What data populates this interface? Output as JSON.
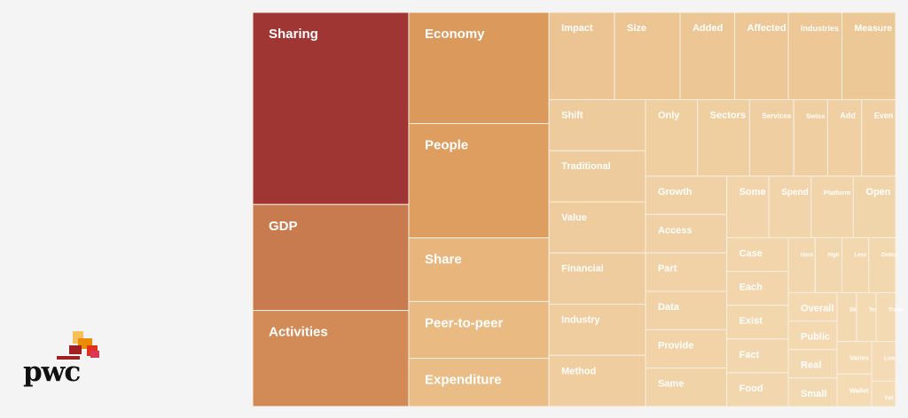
{
  "brand": {
    "logo_text": "pwc"
  },
  "colors": {
    "background": "#f4f4f4",
    "cell_border": "#f7efe4",
    "label": "#ffffff",
    "logo_blocks": [
      "#f6c15a",
      "#eb8c00",
      "#e0301e",
      "#a32020",
      "#d93954"
    ]
  },
  "chart_data": {
    "type": "treemap",
    "title": "",
    "weight_units": "relative word frequency (estimated from tile areas)",
    "items": [
      {
        "label": "Sharing",
        "weight": 3.46,
        "color": "#a03633"
      },
      {
        "label": "GDP",
        "weight": 1.91,
        "color": "#c97b50"
      },
      {
        "label": "Activities",
        "weight": 1.73,
        "color": "#d28b57"
      },
      {
        "label": "Economy",
        "weight": 1.8,
        "color": "#db9a5b"
      },
      {
        "label": "People",
        "weight": 1.85,
        "color": "#de9e5f"
      },
      {
        "label": "Share",
        "weight": 1.03,
        "color": "#e8b67c"
      },
      {
        "label": "Peer-to-peer",
        "weight": 0.92,
        "color": "#e9ba82"
      },
      {
        "label": "Expenditure",
        "weight": 0.78,
        "color": "#eabd86"
      },
      {
        "label": "Impact",
        "weight": 0.66,
        "color": "#ecc493"
      },
      {
        "label": "Size",
        "weight": 0.66,
        "color": "#ecc593"
      },
      {
        "label": "Added",
        "weight": 0.55,
        "color": "#ecc694"
      },
      {
        "label": "Affected",
        "weight": 0.54,
        "color": "#edc795"
      },
      {
        "label": "Industries",
        "weight": 0.54,
        "color": "#edc796"
      },
      {
        "label": "Measure",
        "weight": 0.54,
        "color": "#edc897"
      },
      {
        "label": "Shift",
        "weight": 0.57,
        "color": "#eecb9c"
      },
      {
        "label": "Traditional",
        "weight": 0.57,
        "color": "#eecb9c"
      },
      {
        "label": "Value",
        "weight": 0.57,
        "color": "#eecc9d"
      },
      {
        "label": "Financial",
        "weight": 0.57,
        "color": "#eecc9d"
      },
      {
        "label": "Industry",
        "weight": 0.57,
        "color": "#efcd9e"
      },
      {
        "label": "Method",
        "weight": 0.57,
        "color": "#efcd9e"
      },
      {
        "label": "Only",
        "weight": 0.46,
        "color": "#efce9f"
      },
      {
        "label": "Sectors",
        "weight": 0.46,
        "color": "#efcea0"
      },
      {
        "label": "Services",
        "weight": 0.39,
        "color": "#efcfa1"
      },
      {
        "label": "Swiss",
        "weight": 0.3,
        "color": "#efcfa1"
      },
      {
        "label": "Add",
        "weight": 0.3,
        "color": "#f0cfa2"
      },
      {
        "label": "Even",
        "weight": 0.3,
        "color": "#f0d0a3"
      },
      {
        "label": "Growth",
        "weight": 0.36,
        "color": "#f0d1a5"
      },
      {
        "label": "Access",
        "weight": 0.36,
        "color": "#f0d1a5"
      },
      {
        "label": "Part",
        "weight": 0.36,
        "color": "#f0d2a6"
      },
      {
        "label": "Data",
        "weight": 0.36,
        "color": "#f0d2a6"
      },
      {
        "label": "Provide",
        "weight": 0.36,
        "color": "#f1d3a7"
      },
      {
        "label": "Same",
        "weight": 0.36,
        "color": "#f1d3a8"
      },
      {
        "label": "Some",
        "weight": 0.3,
        "color": "#f1d4a9"
      },
      {
        "label": "Spend",
        "weight": 0.3,
        "color": "#f1d4a9"
      },
      {
        "label": "Platform",
        "weight": 0.3,
        "color": "#f1d4aa"
      },
      {
        "label": "Open",
        "weight": 0.3,
        "color": "#f1d5aa"
      },
      {
        "label": "Case",
        "weight": 0.24,
        "color": "#f2d5ab"
      },
      {
        "label": "Each",
        "weight": 0.24,
        "color": "#f2d5ab"
      },
      {
        "label": "Exist",
        "weight": 0.24,
        "color": "#f2d6ac"
      },
      {
        "label": "Fact",
        "weight": 0.24,
        "color": "#f2d6ad"
      },
      {
        "label": "Food",
        "weight": 0.24,
        "color": "#f2d6ad"
      },
      {
        "label": "Hard",
        "weight": 0.17,
        "color": "#f2d7ae"
      },
      {
        "label": "High",
        "weight": 0.17,
        "color": "#f2d7ae"
      },
      {
        "label": "Less",
        "weight": 0.17,
        "color": "#f2d7af"
      },
      {
        "label": "Online",
        "weight": 0.17,
        "color": "#f2d8af"
      },
      {
        "label": "Overall",
        "weight": 0.16,
        "color": "#f3d8b0"
      },
      {
        "label": "Public",
        "weight": 0.16,
        "color": "#f3d8b0"
      },
      {
        "label": "Real",
        "weight": 0.16,
        "color": "#f3d9b1"
      },
      {
        "label": "Small",
        "weight": 0.16,
        "color": "#f3d9b1"
      },
      {
        "label": "Still",
        "weight": 0.11,
        "color": "#f3d9b2"
      },
      {
        "label": "Total",
        "weight": 0.11,
        "color": "#f3dab2"
      },
      {
        "label": "Trade",
        "weight": 0.11,
        "color": "#f3dab3"
      },
      {
        "label": "Varies",
        "weight": 0.13,
        "color": "#f3dab3"
      },
      {
        "label": "Wallet",
        "weight": 0.13,
        "color": "#f4dbb4"
      },
      {
        "label": "Link",
        "weight": 0.11,
        "color": "#f4dbb5"
      },
      {
        "label": "Yet",
        "weight": 0.07,
        "color": "#f4dcb6"
      }
    ]
  }
}
